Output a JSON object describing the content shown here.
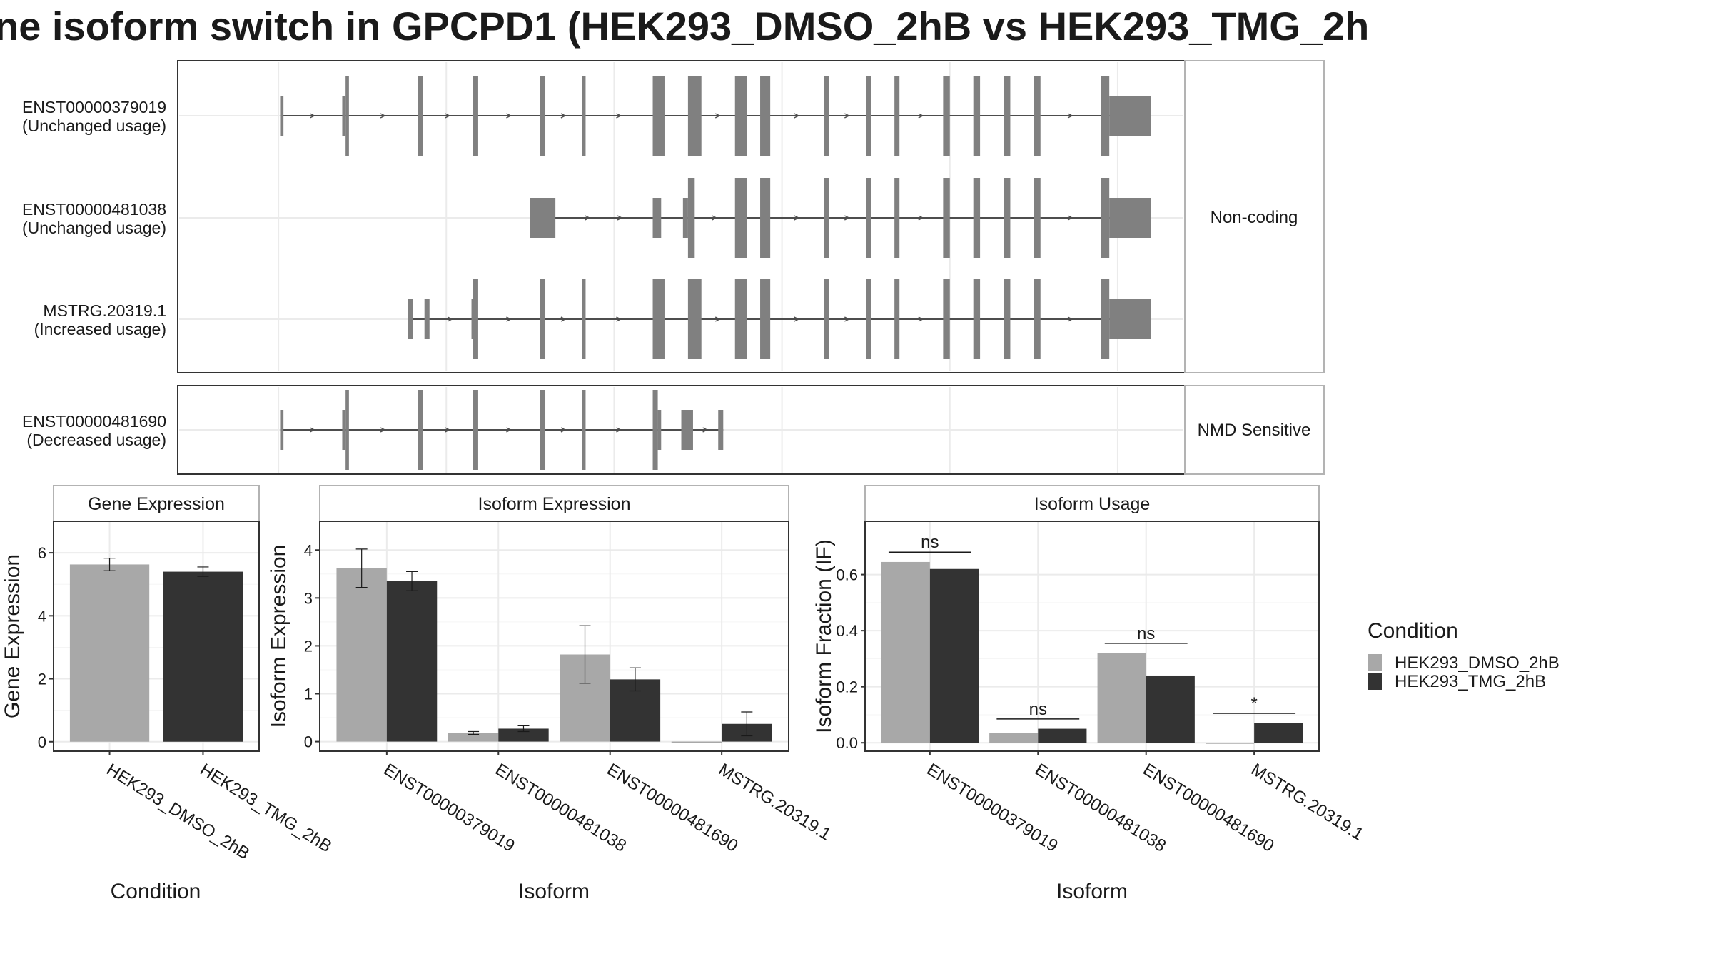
{
  "title": "ne isoform switch in GPCPD1 (HEK293_DMSO_2hB vs HEK293_TMG_2h",
  "colors": {
    "dmso": "#a8a8a8",
    "tmg": "#333333",
    "exon": "#808080",
    "intron": "#4d4d4d",
    "grid": "#ebebeb",
    "panel_border": "#333333",
    "strip_border": "#b3b3b3"
  },
  "structure": {
    "coding_group_label": "",
    "noncoding_group_label": "Non-coding",
    "nmd_group_label": "NMD Sensitive",
    "transcripts": [
      {
        "id": "ENST00000379019",
        "usage": "(Unchanged usage)",
        "group": "coding",
        "exons": [
          [
            1,
            3,
            "s"
          ],
          [
            40,
            42,
            "t"
          ],
          [
            38,
            40,
            "s"
          ],
          [
            83,
            86,
            "t"
          ],
          [
            116,
            119,
            "t"
          ],
          [
            156,
            159,
            "t"
          ],
          [
            181,
            183,
            "t"
          ],
          [
            223,
            230,
            "t"
          ],
          [
            244,
            252,
            "t"
          ],
          [
            272,
            279,
            "t"
          ],
          [
            287,
            293,
            "t"
          ],
          [
            325,
            328,
            "t"
          ],
          [
            350,
            353,
            "t"
          ],
          [
            367,
            370,
            "t"
          ],
          [
            396,
            400,
            "t"
          ],
          [
            414,
            418,
            "t"
          ],
          [
            432,
            436,
            "t"
          ],
          [
            450,
            454,
            "t"
          ],
          [
            490,
            495,
            "t"
          ],
          [
            495,
            520,
            "u"
          ]
        ]
      },
      {
        "id": "ENST00000481038",
        "usage": "(Unchanged usage)",
        "group": "noncoding",
        "exons": [
          [
            150,
            165,
            "u"
          ],
          [
            223,
            228,
            "s"
          ],
          [
            241,
            244,
            "s"
          ],
          [
            244,
            248,
            "t"
          ],
          [
            272,
            279,
            "t"
          ],
          [
            287,
            293,
            "t"
          ],
          [
            325,
            328,
            "t"
          ],
          [
            350,
            353,
            "t"
          ],
          [
            367,
            370,
            "t"
          ],
          [
            396,
            400,
            "t"
          ],
          [
            414,
            418,
            "t"
          ],
          [
            432,
            436,
            "t"
          ],
          [
            450,
            454,
            "t"
          ],
          [
            490,
            495,
            "t"
          ],
          [
            495,
            520,
            "u"
          ]
        ]
      },
      {
        "id": "MSTRG.20319.1",
        "usage": "(Increased usage)",
        "group": "noncoding",
        "exons": [
          [
            77,
            80,
            "s"
          ],
          [
            87,
            90,
            "s"
          ],
          [
            115,
            116,
            "s"
          ],
          [
            116,
            119,
            "t"
          ],
          [
            156,
            159,
            "t"
          ],
          [
            181,
            183,
            "t"
          ],
          [
            223,
            230,
            "t"
          ],
          [
            244,
            252,
            "t"
          ],
          [
            272,
            279,
            "t"
          ],
          [
            287,
            293,
            "t"
          ],
          [
            325,
            328,
            "t"
          ],
          [
            350,
            353,
            "t"
          ],
          [
            367,
            370,
            "t"
          ],
          [
            396,
            400,
            "t"
          ],
          [
            414,
            418,
            "t"
          ],
          [
            432,
            436,
            "t"
          ],
          [
            450,
            454,
            "t"
          ],
          [
            490,
            495,
            "t"
          ],
          [
            495,
            520,
            "u"
          ]
        ]
      },
      {
        "id": "ENST00000481690",
        "usage": "(Decreased usage)",
        "group": "nmd",
        "exons": [
          [
            1,
            3,
            "s"
          ],
          [
            38,
            40,
            "s"
          ],
          [
            40,
            42,
            "t"
          ],
          [
            83,
            86,
            "t"
          ],
          [
            116,
            119,
            "t"
          ],
          [
            156,
            159,
            "t"
          ],
          [
            181,
            183,
            "t"
          ],
          [
            223,
            226,
            "t"
          ],
          [
            226,
            228,
            "s"
          ],
          [
            240,
            247,
            "s"
          ],
          [
            262,
            265,
            "s"
          ]
        ]
      }
    ]
  },
  "chart_data": [
    {
      "type": "bar",
      "title": "Gene Expression",
      "xlabel": "Condition",
      "ylabel": "Gene Expression",
      "ylim": [
        -0.3,
        7.0
      ],
      "yticks": [
        0,
        2,
        4,
        6
      ],
      "categories": [
        "HEK293_DMSO_2hB",
        "HEK293_TMG_2hB"
      ],
      "series": [
        {
          "name": "HEK293_DMSO_2hB",
          "values": [
            5.63,
            null
          ],
          "err": [
            0.2,
            null
          ]
        },
        {
          "name": "HEK293_TMG_2hB",
          "values": [
            null,
            5.4
          ],
          "err": [
            null,
            0.15
          ]
        }
      ],
      "dodged": false
    },
    {
      "type": "bar",
      "title": "Isoform Expression",
      "xlabel": "Isoform",
      "ylabel": "Isoform Expression",
      "ylim": [
        -0.2,
        4.6
      ],
      "yticks": [
        0,
        1,
        2,
        3,
        4
      ],
      "categories": [
        "ENST00000379019",
        "ENST00000481038",
        "ENST00000481690",
        "MSTRG.20319.1"
      ],
      "series": [
        {
          "name": "HEK293_DMSO_2hB",
          "values": [
            3.62,
            0.18,
            1.82,
            0.0
          ],
          "err": [
            0.4,
            0.03,
            0.6,
            0.0
          ]
        },
        {
          "name": "HEK293_TMG_2hB",
          "values": [
            3.35,
            0.27,
            1.3,
            0.37
          ],
          "err": [
            0.2,
            0.06,
            0.24,
            0.25
          ]
        }
      ],
      "dodged": true
    },
    {
      "type": "bar",
      "title": "Isoform Usage",
      "xlabel": "Isoform",
      "ylabel": "Isoform Fraction (IF)",
      "ylim": [
        -0.03,
        0.79
      ],
      "yticks": [
        0.0,
        0.2,
        0.4,
        0.6
      ],
      "ytick_labels": [
        "0.0",
        "0.2",
        "0.4",
        "0.6"
      ],
      "categories": [
        "ENST00000379019",
        "ENST00000481038",
        "ENST00000481690",
        "MSTRG.20319.1"
      ],
      "series": [
        {
          "name": "HEK293_DMSO_2hB",
          "values": [
            0.645,
            0.035,
            0.32,
            0.0
          ]
        },
        {
          "name": "HEK293_TMG_2hB",
          "values": [
            0.62,
            0.05,
            0.24,
            0.07
          ]
        }
      ],
      "significance": [
        {
          "label": "ns",
          "y": 0.68
        },
        {
          "label": "ns",
          "y": 0.085
        },
        {
          "label": "ns",
          "y": 0.355
        },
        {
          "label": "*",
          "y": 0.105
        }
      ],
      "dodged": true
    }
  ],
  "legend": {
    "title": "Condition",
    "items": [
      "HEK293_DMSO_2hB",
      "HEK293_TMG_2hB"
    ]
  }
}
